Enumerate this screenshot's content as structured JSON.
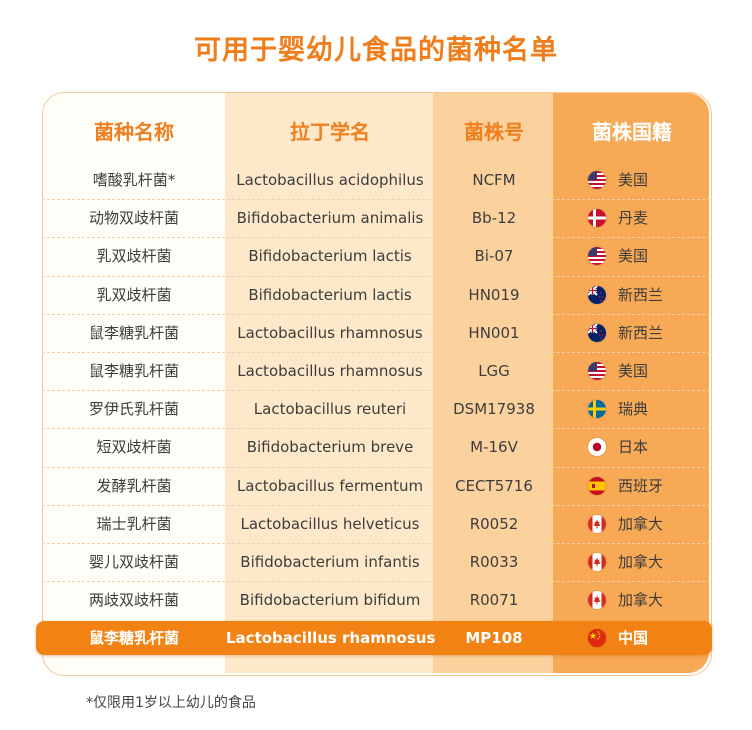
{
  "title": "可用于婴幼儿食品的菌种名单",
  "headers": [
    "菌种名称",
    "拉丁学名",
    "菌株号",
    "菌株国籍"
  ],
  "rows": [
    {
      "name": "嗜酸乳杆菌*",
      "latin": "Lactobacillus acidophilus",
      "strain": "NCFM",
      "country": "美国",
      "flag": "us-flag-icon"
    },
    {
      "name": "动物双歧杆菌",
      "latin": "Bifidobacterium animalis",
      "strain": "Bb-12",
      "country": "丹麦",
      "flag": "denmark-flag-icon"
    },
    {
      "name": "乳双歧杆菌",
      "latin": "Bifidobacterium lactis",
      "strain": "Bi-07",
      "country": "美国",
      "flag": "us-flag-icon"
    },
    {
      "name": "乳双歧杆菌",
      "latin": "Bifidobacterium lactis",
      "strain": "HN019",
      "country": "新西兰",
      "flag": "nz-flag-icon"
    },
    {
      "name": "鼠李糖乳杆菌",
      "latin": "Lactobacillus rhamnosus",
      "strain": "HN001",
      "country": "新西兰",
      "flag": "nz-flag-icon"
    },
    {
      "name": "鼠李糖乳杆菌",
      "latin": "Lactobacillus rhamnosus",
      "strain": "LGG",
      "country": "美国",
      "flag": "us-flag-icon"
    },
    {
      "name": "罗伊氏乳杆菌",
      "latin": "Lactobacillus reuteri",
      "strain": "DSM17938",
      "country": "瑞典",
      "flag": "sweden-flag-icon"
    },
    {
      "name": "短双歧杆菌",
      "latin": "Bifidobacterium breve",
      "strain": "M-16V",
      "country": "日本",
      "flag": "japan-flag-icon"
    },
    {
      "name": "发酵乳杆菌",
      "latin": "Lactobacillus fermentum",
      "strain": "CECT5716",
      "country": "西班牙",
      "flag": "spain-flag-icon"
    },
    {
      "name": "瑞士乳杆菌",
      "latin": "Lactobacillus helveticus",
      "strain": "R0052",
      "country": "加拿大",
      "flag": "canada-flag-icon"
    },
    {
      "name": "婴儿双歧杆菌",
      "latin": "Bifidobacterium infantis",
      "strain": "R0033",
      "country": "加拿大",
      "flag": "canada-flag-icon"
    },
    {
      "name": "两歧双歧杆菌",
      "latin": "Bifidobacterium bifidum",
      "strain": "R0071",
      "country": "加拿大",
      "flag": "canada-flag-icon"
    }
  ],
  "highlight": {
    "name": "鼠李糖乳杆菌",
    "latin": "Lactobacillus rhamnosus",
    "strain": "MP108",
    "country": "中国",
    "flag": "china-flag-icon"
  },
  "footnote": "*仅限用1岁以上幼儿的食品",
  "colors": {
    "accent": "#f07d1c",
    "highlight_row": "#f38214",
    "col_latin": "#fde8c9",
    "col_strain": "#fbd29e",
    "col_country": "#f7a956"
  }
}
